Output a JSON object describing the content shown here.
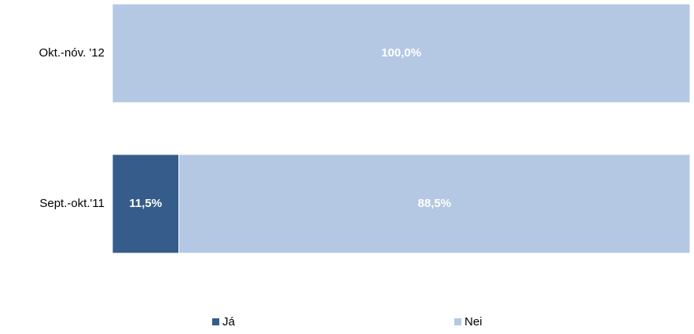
{
  "chart_data": {
    "type": "stacked-bar-horizontal",
    "categories": [
      "Okt.-nóv. '12",
      "Sept.-okt.'11"
    ],
    "series": [
      {
        "name": "Já",
        "color": "#355c8a",
        "values": [
          0,
          11.5
        ],
        "value_labels": [
          null,
          "11,5%"
        ]
      },
      {
        "name": "Nei",
        "color": "#b4c8e3",
        "values": [
          100,
          88.5
        ],
        "value_labels": [
          "100,0%",
          "88,5%"
        ]
      }
    ],
    "legend": "bottom"
  }
}
